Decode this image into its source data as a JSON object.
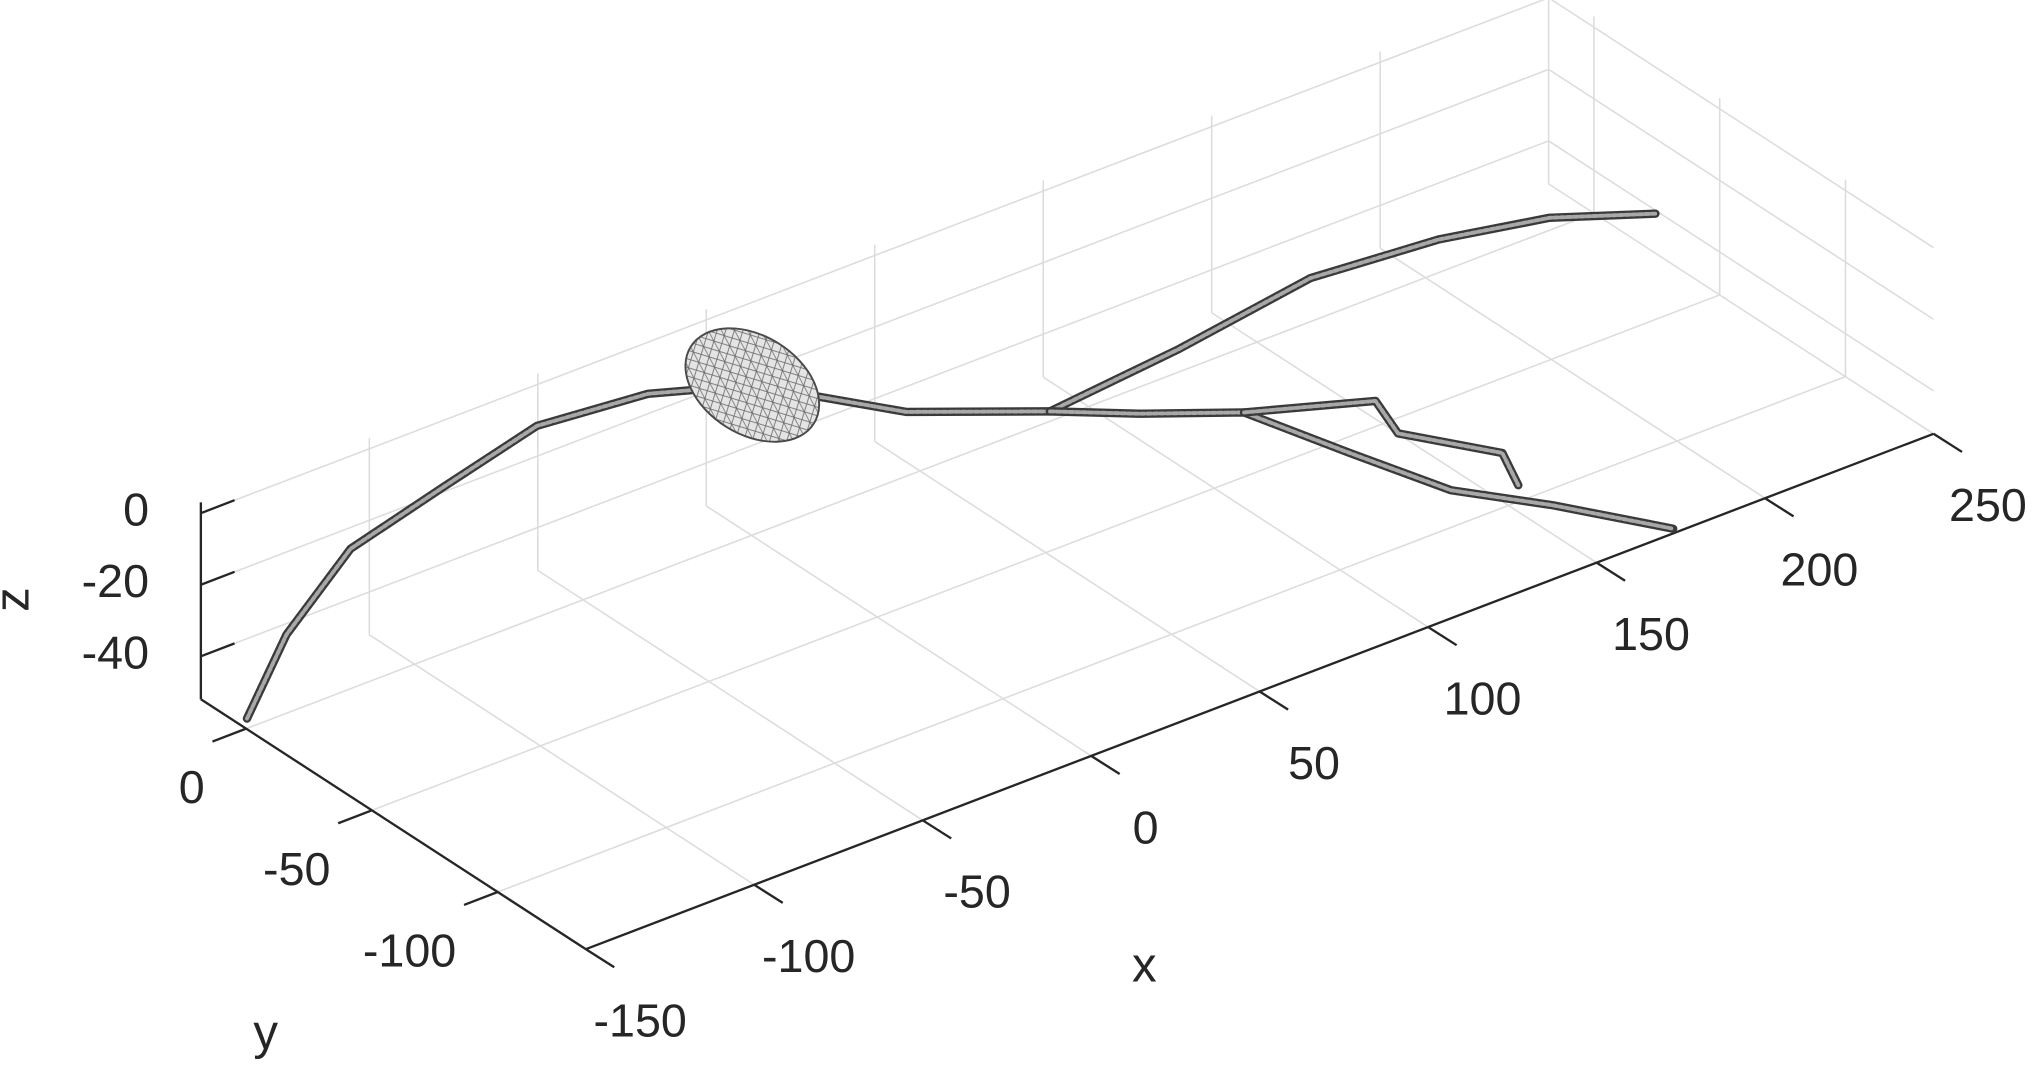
{
  "chart_data": {
    "type": "line3d",
    "xlabel": "x",
    "ylabel": "y",
    "zlabel": "z",
    "xlim": [
      -150,
      250
    ],
    "ylim": [
      -135,
      18
    ],
    "zlim": [
      -52,
      3
    ],
    "xticks": [
      -150,
      -100,
      -50,
      0,
      50,
      100,
      150,
      200,
      250
    ],
    "yticks": [
      -100,
      -50,
      0
    ],
    "zticks": [
      -40,
      -20,
      0
    ],
    "grid": true,
    "color": "#3a3a3a",
    "series": [
      {
        "x": [
          -149,
          -138,
          -122,
          -90,
          -57,
          -27,
          -5,
          16,
          43
        ],
        "y": [
          1,
          0,
          -4,
          2,
          9,
          5,
          -7,
          -40,
          -61
        ],
        "z": [
          -50,
          -30,
          -10,
          -7,
          -5,
          -5,
          -5,
          -5,
          -5
        ]
      },
      {
        "x": [
          43,
          85,
          130,
          165,
          192,
          213
        ],
        "y": [
          -61,
          -56,
          -48,
          -52,
          -60,
          -74
        ],
        "z": [
          -5,
          -5,
          -5,
          -5,
          -5,
          -5
        ]
      },
      {
        "x": [
          43,
          59,
          79,
          87,
          121,
          146,
          172
        ],
        "y": [
          -61,
          -75,
          -90,
          -121,
          -116,
          -123,
          -136
        ],
        "z": [
          -5,
          -5,
          -5,
          -5,
          -30,
          -40,
          -50
        ]
      },
      {
        "x": [
          79,
          112,
          112,
          131,
          135
        ],
        "y": [
          -90,
          -98,
          -107,
          -123,
          -124
        ],
        "z": [
          -5,
          -10,
          -15,
          -20,
          -30
        ]
      }
    ],
    "soma": {
      "x": -5,
      "y": -7,
      "z": -5
    }
  }
}
